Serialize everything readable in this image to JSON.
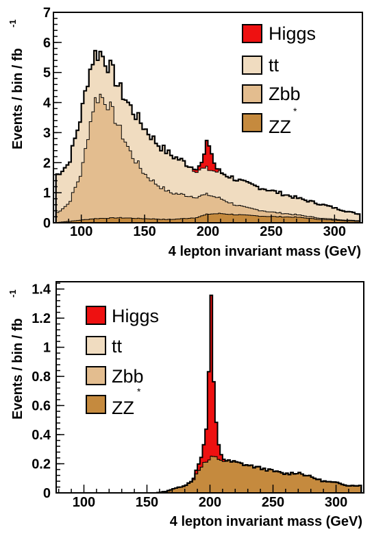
{
  "chart_data": [
    {
      "type": "area",
      "stacked": true,
      "ylabel": "Events / bin / fb",
      "ylabel_superscript": "-1",
      "xlabel": "4 lepton invariant mass (GeV)",
      "xlim": [
        78,
        322
      ],
      "ylim": [
        0,
        7
      ],
      "xticks": [
        "100",
        "150",
        "200",
        "250",
        "300"
      ],
      "yticks": [
        "0",
        "1",
        "2",
        "3",
        "4",
        "5",
        "6",
        "7"
      ],
      "legend_position": "top-right",
      "series": [
        {
          "name": "ZZ",
          "name_superscript": "*",
          "color": "#c58a3e",
          "x": [
            80,
            95,
            110,
            130,
            150,
            170,
            190,
            200,
            210,
            230,
            250,
            270,
            290,
            310,
            320
          ],
          "y": [
            0.02,
            0.08,
            0.15,
            0.18,
            0.15,
            0.12,
            0.18,
            0.3,
            0.32,
            0.26,
            0.22,
            0.2,
            0.12,
            0.08,
            0.06
          ]
        },
        {
          "name": "Zbb",
          "color": "#e3bd8f",
          "x": [
            80,
            90,
            100,
            105,
            110,
            115,
            120,
            125,
            130,
            140,
            150,
            160,
            170,
            180,
            190,
            200,
            210,
            220,
            230,
            250,
            270,
            290,
            310,
            320
          ],
          "y": [
            0.3,
            0.6,
            1.6,
            2.8,
            3.9,
            4.1,
            3.9,
            3.5,
            3.0,
            2.1,
            1.5,
            1.15,
            0.9,
            0.8,
            0.7,
            0.65,
            0.5,
            0.35,
            0.25,
            0.15,
            0.08,
            0.04,
            0.02,
            0.02
          ]
        },
        {
          "name": "tt",
          "color": "#f0dcc0",
          "x": [
            80,
            90,
            100,
            105,
            110,
            115,
            120,
            125,
            130,
            140,
            150,
            160,
            170,
            180,
            190,
            200,
            210,
            220,
            230,
            250,
            270,
            290,
            310,
            320
          ],
          "y": [
            1.25,
            1.3,
            1.9,
            1.85,
            1.55,
            1.4,
            1.3,
            1.3,
            1.3,
            1.5,
            1.5,
            1.35,
            1.25,
            1.1,
            0.9,
            0.85,
            0.85,
            0.85,
            0.8,
            0.7,
            0.55,
            0.45,
            0.28,
            0.2
          ]
        },
        {
          "name": "Higgs",
          "color": "#ee1111",
          "x": [
            188,
            192,
            196,
            198,
            200,
            202,
            204,
            206,
            208,
            212
          ],
          "y": [
            0.05,
            0.1,
            0.2,
            0.7,
            0.9,
            0.75,
            0.35,
            0.15,
            0.05,
            0.0
          ]
        }
      ]
    },
    {
      "type": "area",
      "stacked": true,
      "ylabel": "Events / bin / fb",
      "ylabel_superscript": "-1",
      "xlabel": "4 lepton invariant mass (GeV)",
      "xlim": [
        78,
        322
      ],
      "ylim": [
        0,
        1.45
      ],
      "xticks": [
        "100",
        "150",
        "200",
        "250",
        "300"
      ],
      "yticks": [
        "0",
        "0.2",
        "0.4",
        "0.6",
        "0.8",
        "1",
        "1.2",
        "1.4"
      ],
      "legend_position": "top-left",
      "series": [
        {
          "name": "ZZ",
          "name_superscript": "*",
          "color": "#c58a3e",
          "x": [
            158,
            165,
            172,
            180,
            186,
            190,
            194,
            198,
            202,
            206,
            212,
            220,
            230,
            240,
            250,
            260,
            270,
            280,
            290,
            300,
            310,
            320
          ],
          "y": [
            0.0,
            0.01,
            0.03,
            0.05,
            0.08,
            0.15,
            0.2,
            0.22,
            0.25,
            0.24,
            0.22,
            0.21,
            0.19,
            0.17,
            0.15,
            0.13,
            0.14,
            0.11,
            0.08,
            0.07,
            0.05,
            0.05
          ]
        },
        {
          "name": "Zbb",
          "color": "#e3bd8f",
          "x": [],
          "y": []
        },
        {
          "name": "tt",
          "color": "#f0dcc0",
          "x": [],
          "y": []
        },
        {
          "name": "Higgs",
          "color": "#ee1111",
          "x": [
            186,
            190,
            194,
            196,
            198,
            199,
            200,
            201,
            202,
            203,
            204,
            206,
            208,
            212
          ],
          "y": [
            0.0,
            0.03,
            0.08,
            0.15,
            0.3,
            0.6,
            0.95,
            1.05,
            0.8,
            0.5,
            0.3,
            0.15,
            0.05,
            0.0
          ]
        }
      ]
    }
  ],
  "colors": {
    "axis": "#000000",
    "background": "#ffffff"
  }
}
